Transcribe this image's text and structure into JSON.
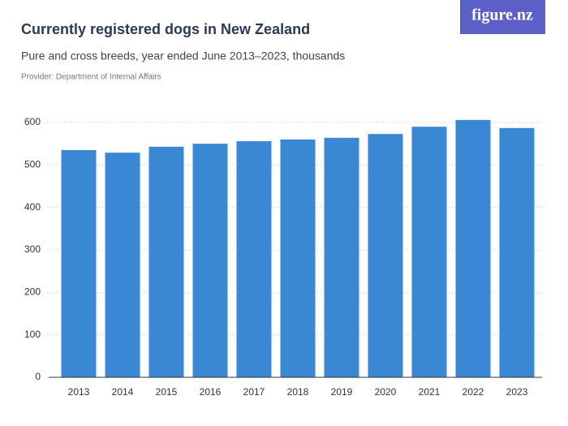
{
  "brand": "figure.nz",
  "chart_data": {
    "type": "bar",
    "title": "Currently registered dogs in New Zealand",
    "subtitle": "Pure and cross breeds, year ended June 2013–2023, thousands",
    "provider": "Provider: Department of Internal Affairs",
    "categories": [
      "2013",
      "2014",
      "2015",
      "2016",
      "2017",
      "2018",
      "2019",
      "2020",
      "2021",
      "2022",
      "2023"
    ],
    "values": [
      535,
      529,
      543,
      550,
      556,
      560,
      564,
      573,
      590,
      606,
      587
    ],
    "color": "#3a87d4",
    "ylim": [
      0,
      620
    ],
    "yticks": [
      0,
      100,
      200,
      300,
      400,
      500,
      600
    ],
    "grid": true
  }
}
